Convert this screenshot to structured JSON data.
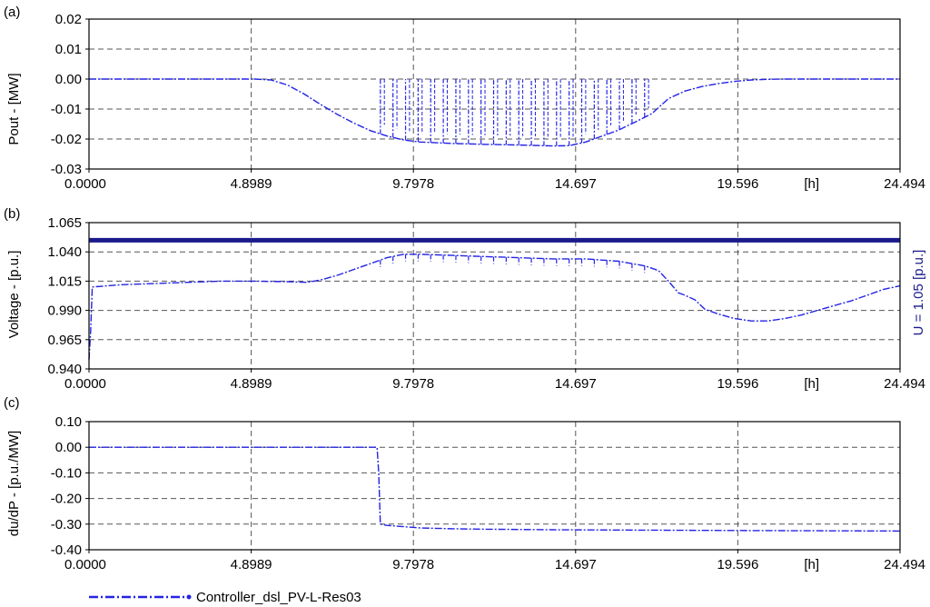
{
  "colors": {
    "series": "#2323e6",
    "ref_line": "#1a1a8c",
    "grid": "#555555",
    "axis": "#000000"
  },
  "legend": {
    "label": "Controller_dsl_PV-L-Res03"
  },
  "chart_data": [
    {
      "type": "line",
      "panel_label": "(a)",
      "ylabel": "Pout - [MW]",
      "xunit": "[h]",
      "xlim": [
        0,
        24.494
      ],
      "ylim": [
        -0.03,
        0.02
      ],
      "xticks": [
        "0.0000",
        "4.8989",
        "9.7978",
        "14.697",
        "19.596",
        "24.494"
      ],
      "yticks": [
        "0.02",
        "0.01",
        "0.00",
        "-0.01",
        "-0.02",
        "-0.03"
      ],
      "series": [
        {
          "envelope": {
            "x": [
              0,
              5.0,
              5.5,
              6.0,
              6.5,
              7.0,
              7.5,
              8.0,
              8.5,
              9.0,
              9.5,
              10.0,
              11.0,
              12.0,
              13.0,
              14.0,
              14.5,
              15.0,
              15.5,
              16.0,
              16.5,
              17.0,
              17.5,
              18.0,
              18.5,
              19.0,
              19.5,
              20.0,
              20.5,
              21.0,
              24.494
            ],
            "y": [
              0.0,
              0.0,
              -0.0003,
              -0.002,
              -0.005,
              -0.0085,
              -0.0118,
              -0.0147,
              -0.0172,
              -0.019,
              -0.0203,
              -0.021,
              -0.0215,
              -0.0218,
              -0.022,
              -0.0223,
              -0.0222,
              -0.021,
              -0.019,
              -0.017,
              -0.0143,
              -0.0115,
              -0.0065,
              -0.004,
              -0.0025,
              -0.0015,
              -0.0008,
              -0.0003,
              -0.0001,
              0.0,
              0.0
            ]
          },
          "spikes_x": [
            8.8,
            9.18,
            9.56,
            9.94,
            10.32,
            10.7,
            11.08,
            11.46,
            11.84,
            12.22,
            12.6,
            12.98,
            13.36,
            13.74,
            14.12,
            14.5,
            14.88,
            15.26,
            15.64,
            16.02,
            16.4,
            16.78
          ],
          "spike_top": 0.0
        }
      ]
    },
    {
      "type": "line",
      "panel_label": "(b)",
      "ylabel": "Voltage - [p.u.]",
      "xunit": "[h]",
      "xlim": [
        0,
        24.494
      ],
      "ylim": [
        0.94,
        1.065
      ],
      "xticks": [
        "0.0000",
        "4.8989",
        "9.7978",
        "14.697",
        "19.596",
        "24.494"
      ],
      "yticks": [
        "1.065",
        "1.040",
        "1.015",
        "0.990",
        "0.965",
        "0.940"
      ],
      "reference_line": {
        "y": 1.05,
        "label": "U = 1.05 [p.u.]"
      },
      "series": [
        {
          "envelope": {
            "x": [
              0,
              0.05,
              0.1,
              1.0,
              2.0,
              3.0,
              4.0,
              5.0,
              6.0,
              6.6,
              7.0,
              7.5,
              8.0,
              8.5,
              9.0,
              9.5,
              10.0,
              11.0,
              12.0,
              13.0,
              14.0,
              15.0,
              16.0,
              16.8,
              17.2,
              17.5,
              17.8,
              18.0,
              18.3,
              18.6,
              19.0,
              19.5,
              20.0,
              20.5,
              21.0,
              21.5,
              22.0,
              22.5,
              23.0,
              23.5,
              24.0,
              24.494
            ],
            "y": [
              0.948,
              0.972,
              1.01,
              1.012,
              1.013,
              1.014,
              1.015,
              1.015,
              1.0145,
              1.014,
              1.016,
              1.02,
              1.025,
              1.03,
              1.035,
              1.038,
              1.038,
              1.037,
              1.036,
              1.035,
              1.034,
              1.034,
              1.032,
              1.028,
              1.024,
              1.015,
              1.005,
              1.003,
              0.999,
              0.991,
              0.987,
              0.983,
              0.981,
              0.981,
              0.983,
              0.986,
              0.99,
              0.994,
              0.998,
              1.003,
              1.008,
              1.011
            ]
          },
          "spikes_x": [
            8.8,
            9.18,
            9.56,
            9.94,
            10.32,
            10.7,
            11.08,
            11.46,
            11.84,
            12.22,
            12.6,
            12.98,
            13.36,
            13.74,
            14.12,
            14.5,
            14.88,
            15.26,
            15.64,
            16.02,
            16.4,
            16.78
          ],
          "spike_depth": 0.006
        }
      ]
    },
    {
      "type": "line",
      "panel_label": "(c)",
      "ylabel": "du/dP - [p.u./MW]",
      "xunit": "[h]",
      "xlim": [
        0,
        24.494
      ],
      "ylim": [
        -0.4,
        0.1
      ],
      "xticks": [
        "0.0000",
        "4.8989",
        "9.7978",
        "14.697",
        "19.596",
        "24.494"
      ],
      "yticks": [
        "0.10",
        "0.00",
        "-0.10",
        "-0.20",
        "-0.30",
        "-0.40"
      ],
      "series": [
        {
          "x": [
            0,
            8.7,
            8.75,
            8.8,
            9.0,
            9.5,
            10.0,
            11.0,
            12.0,
            14.0,
            16.0,
            18.0,
            20.0,
            22.0,
            24.494
          ],
          "y": [
            0.0,
            0.0,
            -0.1,
            -0.3,
            -0.305,
            -0.31,
            -0.315,
            -0.318,
            -0.32,
            -0.322,
            -0.323,
            -0.324,
            -0.325,
            -0.326,
            -0.327
          ]
        }
      ]
    }
  ]
}
